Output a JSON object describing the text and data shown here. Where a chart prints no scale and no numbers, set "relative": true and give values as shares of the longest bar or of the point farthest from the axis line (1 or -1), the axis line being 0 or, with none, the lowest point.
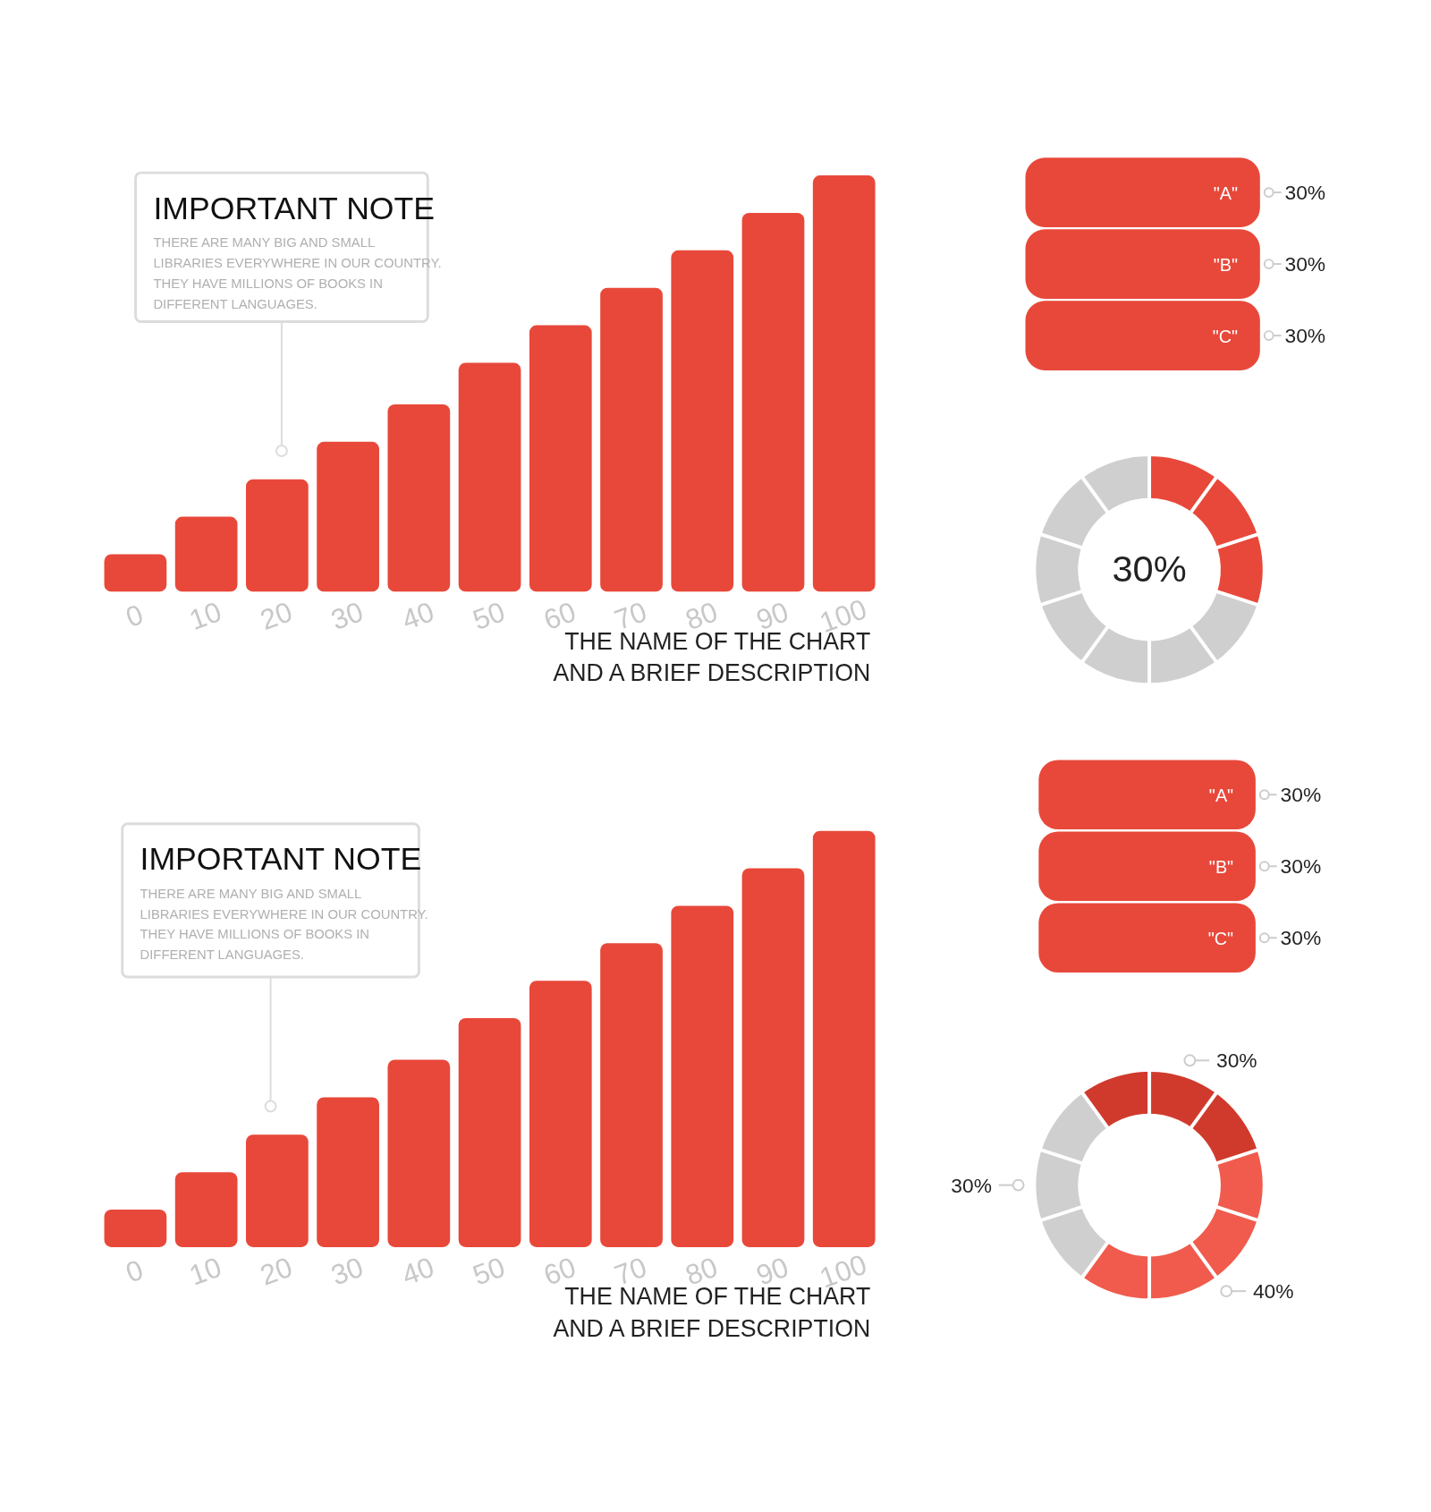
{
  "chart_data": [
    {
      "type": "bar",
      "title": "THE NAME OF THE CHART\nAND A BRIEF DESCRIPTION",
      "annotations": [
        "IMPORTANT NOTE",
        "THERE ARE MANY BIG AND SMALL LIBRARIES EVERYWHERE IN OUR COUNTRY. THEY HAVE MILLIONS OF BOOKS IN DIFFERENT LANGUAGES."
      ],
      "relative": true,
      "categories": [
        "0",
        "10",
        "20",
        "30",
        "40",
        "50",
        "60",
        "70",
        "80",
        "90",
        "100"
      ],
      "values": [
        0.09,
        0.18,
        0.27,
        0.36,
        0.45,
        0.55,
        0.64,
        0.73,
        0.82,
        0.91,
        1
      ],
      "color": "#e8483a"
    },
    {
      "type": "bar",
      "orientation": "horizontal",
      "categories": [
        "\"A\"",
        "\"B\"",
        "\"C\""
      ],
      "values": [
        30,
        30,
        30
      ],
      "value_labels": [
        "30%",
        "30%",
        "30%"
      ],
      "color": "#e8483a"
    },
    {
      "type": "donut",
      "categories": [
        null,
        null
      ],
      "values": [
        30,
        70
      ],
      "colors": [
        "#e8483a",
        "#cfcfcf"
      ],
      "value_labels": [
        "30%",
        null
      ]
    },
    {
      "type": "bar",
      "title": "THE NAME OF THE CHART\nAND A BRIEF DESCRIPTION",
      "annotations": [
        "IMPORTANT NOTE",
        "THERE ARE MANY BIG AND SMALL LIBRARIES EVERYWHERE IN OUR COUNTRY. THEY HAVE MILLIONS OF BOOKS IN DIFFERENT LANGUAGES."
      ],
      "relative": true,
      "categories": [
        "0",
        "10",
        "20",
        "30",
        "40",
        "50",
        "60",
        "70",
        "80",
        "90",
        "100"
      ],
      "values": [
        0.09,
        0.18,
        0.27,
        0.36,
        0.45,
        0.55,
        0.64,
        0.73,
        0.82,
        0.91,
        1
      ],
      "color": "#e8483a"
    },
    {
      "type": "bar",
      "orientation": "horizontal",
      "categories": [
        "\"A\"",
        "\"B\"",
        "\"C\""
      ],
      "values": [
        30,
        30,
        30
      ],
      "value_labels": [
        "30%",
        "30%",
        "30%"
      ],
      "color": "#e8483a"
    },
    {
      "type": "donut",
      "categories": [
        null,
        null,
        null
      ],
      "values": [
        30,
        40,
        30
      ],
      "colors": [
        "#d03a2c",
        "#f05b4d",
        "#cfcfcf"
      ],
      "value_labels": [
        "30%",
        "40%",
        "30%"
      ]
    }
  ]
}
